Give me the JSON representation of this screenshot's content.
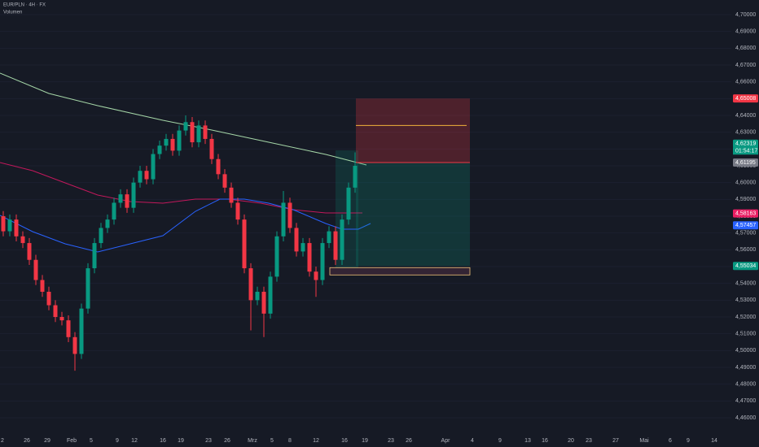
{
  "chart_data": {
    "type": "candlestick",
    "title": "EUR/PLN · 4H · FX",
    "subtitle": "Volumen",
    "up_color": "#089981",
    "down_color": "#f23645",
    "open": [
      4.58,
      4.571,
      4.578,
      4.568,
      4.564,
      4.554,
      4.542,
      4.535,
      4.527,
      4.52,
      4.518,
      4.508,
      4.498,
      4.525,
      4.549,
      4.564,
      4.573,
      4.578,
      4.588,
      4.593,
      4.585,
      4.6,
      4.607,
      4.602,
      4.617,
      4.622,
      4.626,
      4.619,
      4.631,
      4.636,
      4.624,
      4.634,
      4.626,
      4.614,
      4.605,
      4.597,
      4.588,
      4.578,
      4.549,
      4.53,
      4.535,
      4.522,
      4.544,
      4.568,
      4.588,
      4.573,
      4.559,
      4.564,
      4.547,
      4.542,
      4.564,
      4.571,
      4.554,
      4.578,
      4.597
    ],
    "high": [
      4.583,
      4.581,
      4.581,
      4.571,
      4.567,
      4.557,
      4.545,
      4.538,
      4.53,
      4.523,
      4.521,
      4.511,
      4.528,
      4.552,
      4.567,
      4.576,
      4.581,
      4.591,
      4.596,
      4.596,
      4.603,
      4.61,
      4.61,
      4.62,
      4.625,
      4.629,
      4.629,
      4.634,
      4.64,
      4.639,
      4.637,
      4.637,
      4.629,
      4.617,
      4.608,
      4.6,
      4.591,
      4.581,
      4.552,
      4.538,
      4.538,
      4.547,
      4.571,
      4.595,
      4.591,
      4.576,
      4.567,
      4.567,
      4.55,
      4.567,
      4.574,
      4.574,
      4.581,
      4.6,
      4.618
    ],
    "low": [
      4.568,
      4.568,
      4.565,
      4.561,
      4.551,
      4.539,
      4.532,
      4.524,
      4.517,
      4.515,
      4.505,
      4.488,
      4.495,
      4.522,
      4.546,
      4.561,
      4.57,
      4.575,
      4.585,
      4.582,
      4.582,
      4.597,
      4.599,
      4.599,
      4.614,
      4.619,
      4.616,
      4.616,
      4.628,
      4.621,
      4.621,
      4.623,
      4.611,
      4.602,
      4.594,
      4.585,
      4.575,
      4.546,
      4.512,
      4.527,
      4.508,
      4.519,
      4.541,
      4.565,
      4.57,
      4.556,
      4.556,
      4.544,
      4.532,
      4.539,
      4.561,
      4.551,
      4.551,
      4.575,
      4.594
    ],
    "close": [
      4.571,
      4.578,
      4.568,
      4.564,
      4.554,
      4.542,
      4.535,
      4.527,
      4.52,
      4.518,
      4.508,
      4.498,
      4.525,
      4.549,
      4.564,
      4.573,
      4.578,
      4.588,
      4.593,
      4.585,
      4.6,
      4.607,
      4.602,
      4.617,
      4.622,
      4.626,
      4.619,
      4.631,
      4.636,
      4.624,
      4.634,
      4.626,
      4.614,
      4.605,
      4.597,
      4.588,
      4.578,
      4.549,
      4.53,
      4.535,
      4.522,
      4.544,
      4.568,
      4.588,
      4.573,
      4.559,
      4.564,
      4.547,
      4.542,
      4.564,
      4.571,
      4.554,
      4.578,
      4.597,
      4.61
    ],
    "ylim": [
      4.4513,
      4.7087
    ],
    "yticks": [
      {
        "value": 4.46,
        "label": "4,46000"
      },
      {
        "value": 4.47,
        "label": "4,47000"
      },
      {
        "value": 4.48,
        "label": "4,48000"
      },
      {
        "value": 4.49,
        "label": "4,49000"
      },
      {
        "value": 4.5,
        "label": "4,50000"
      },
      {
        "value": 4.51,
        "label": "4,51000"
      },
      {
        "value": 4.52,
        "label": "4,52000"
      },
      {
        "value": 4.53,
        "label": "4,53000"
      },
      {
        "value": 4.54,
        "label": "4,54000"
      },
      {
        "value": 4.55,
        "label": "4,55000"
      },
      {
        "value": 4.56,
        "label": "4,56000"
      },
      {
        "value": 4.57,
        "label": "4,57000"
      },
      {
        "value": 4.58,
        "label": "4,58000"
      },
      {
        "value": 4.59,
        "label": "4,59000"
      },
      {
        "value": 4.6,
        "label": "4,60000"
      },
      {
        "value": 4.61,
        "label": "4,61000"
      },
      {
        "value": 4.62,
        "label": "4,62000"
      },
      {
        "value": 4.63,
        "label": "4,63000"
      },
      {
        "value": 4.64,
        "label": "4,64000"
      },
      {
        "value": 4.65,
        "label": "4,65000"
      },
      {
        "value": 4.66,
        "label": "4,66000"
      },
      {
        "value": 4.67,
        "label": "4,67000"
      },
      {
        "value": 4.68,
        "label": "4,68000"
      },
      {
        "value": 4.69,
        "label": "4,69000"
      },
      {
        "value": 4.7,
        "label": "4,70000"
      }
    ],
    "x_labels": [
      "2",
      "26",
      "29",
      "Feb",
      "5",
      "9",
      "12",
      "16",
      "19",
      "23",
      "26",
      "Mrz",
      "5",
      "8",
      "12",
      "16",
      "19",
      "23",
      "26",
      "Apr",
      "4",
      "9",
      "13",
      "16",
      "20",
      "23",
      "27",
      "Mai",
      "6",
      "9",
      "14"
    ],
    "price_labels": [
      {
        "value": 4.65008,
        "label": "4,65008",
        "color": "#f23645"
      },
      {
        "value": 4.62319,
        "label": "4,62319",
        "color": "#089981"
      },
      {
        "value": 4.61195,
        "label": "4,61195",
        "color": "#787b86"
      },
      {
        "value": 4.58163,
        "label": "4,58163",
        "color": "#e91e63"
      },
      {
        "value": 4.57457,
        "label": "4,57457",
        "color": "#2962ff"
      },
      {
        "value": 4.55034,
        "label": "4,55034",
        "color": "#089981"
      }
    ],
    "countdown": "01:54:17",
    "position_line": 4.634
  }
}
